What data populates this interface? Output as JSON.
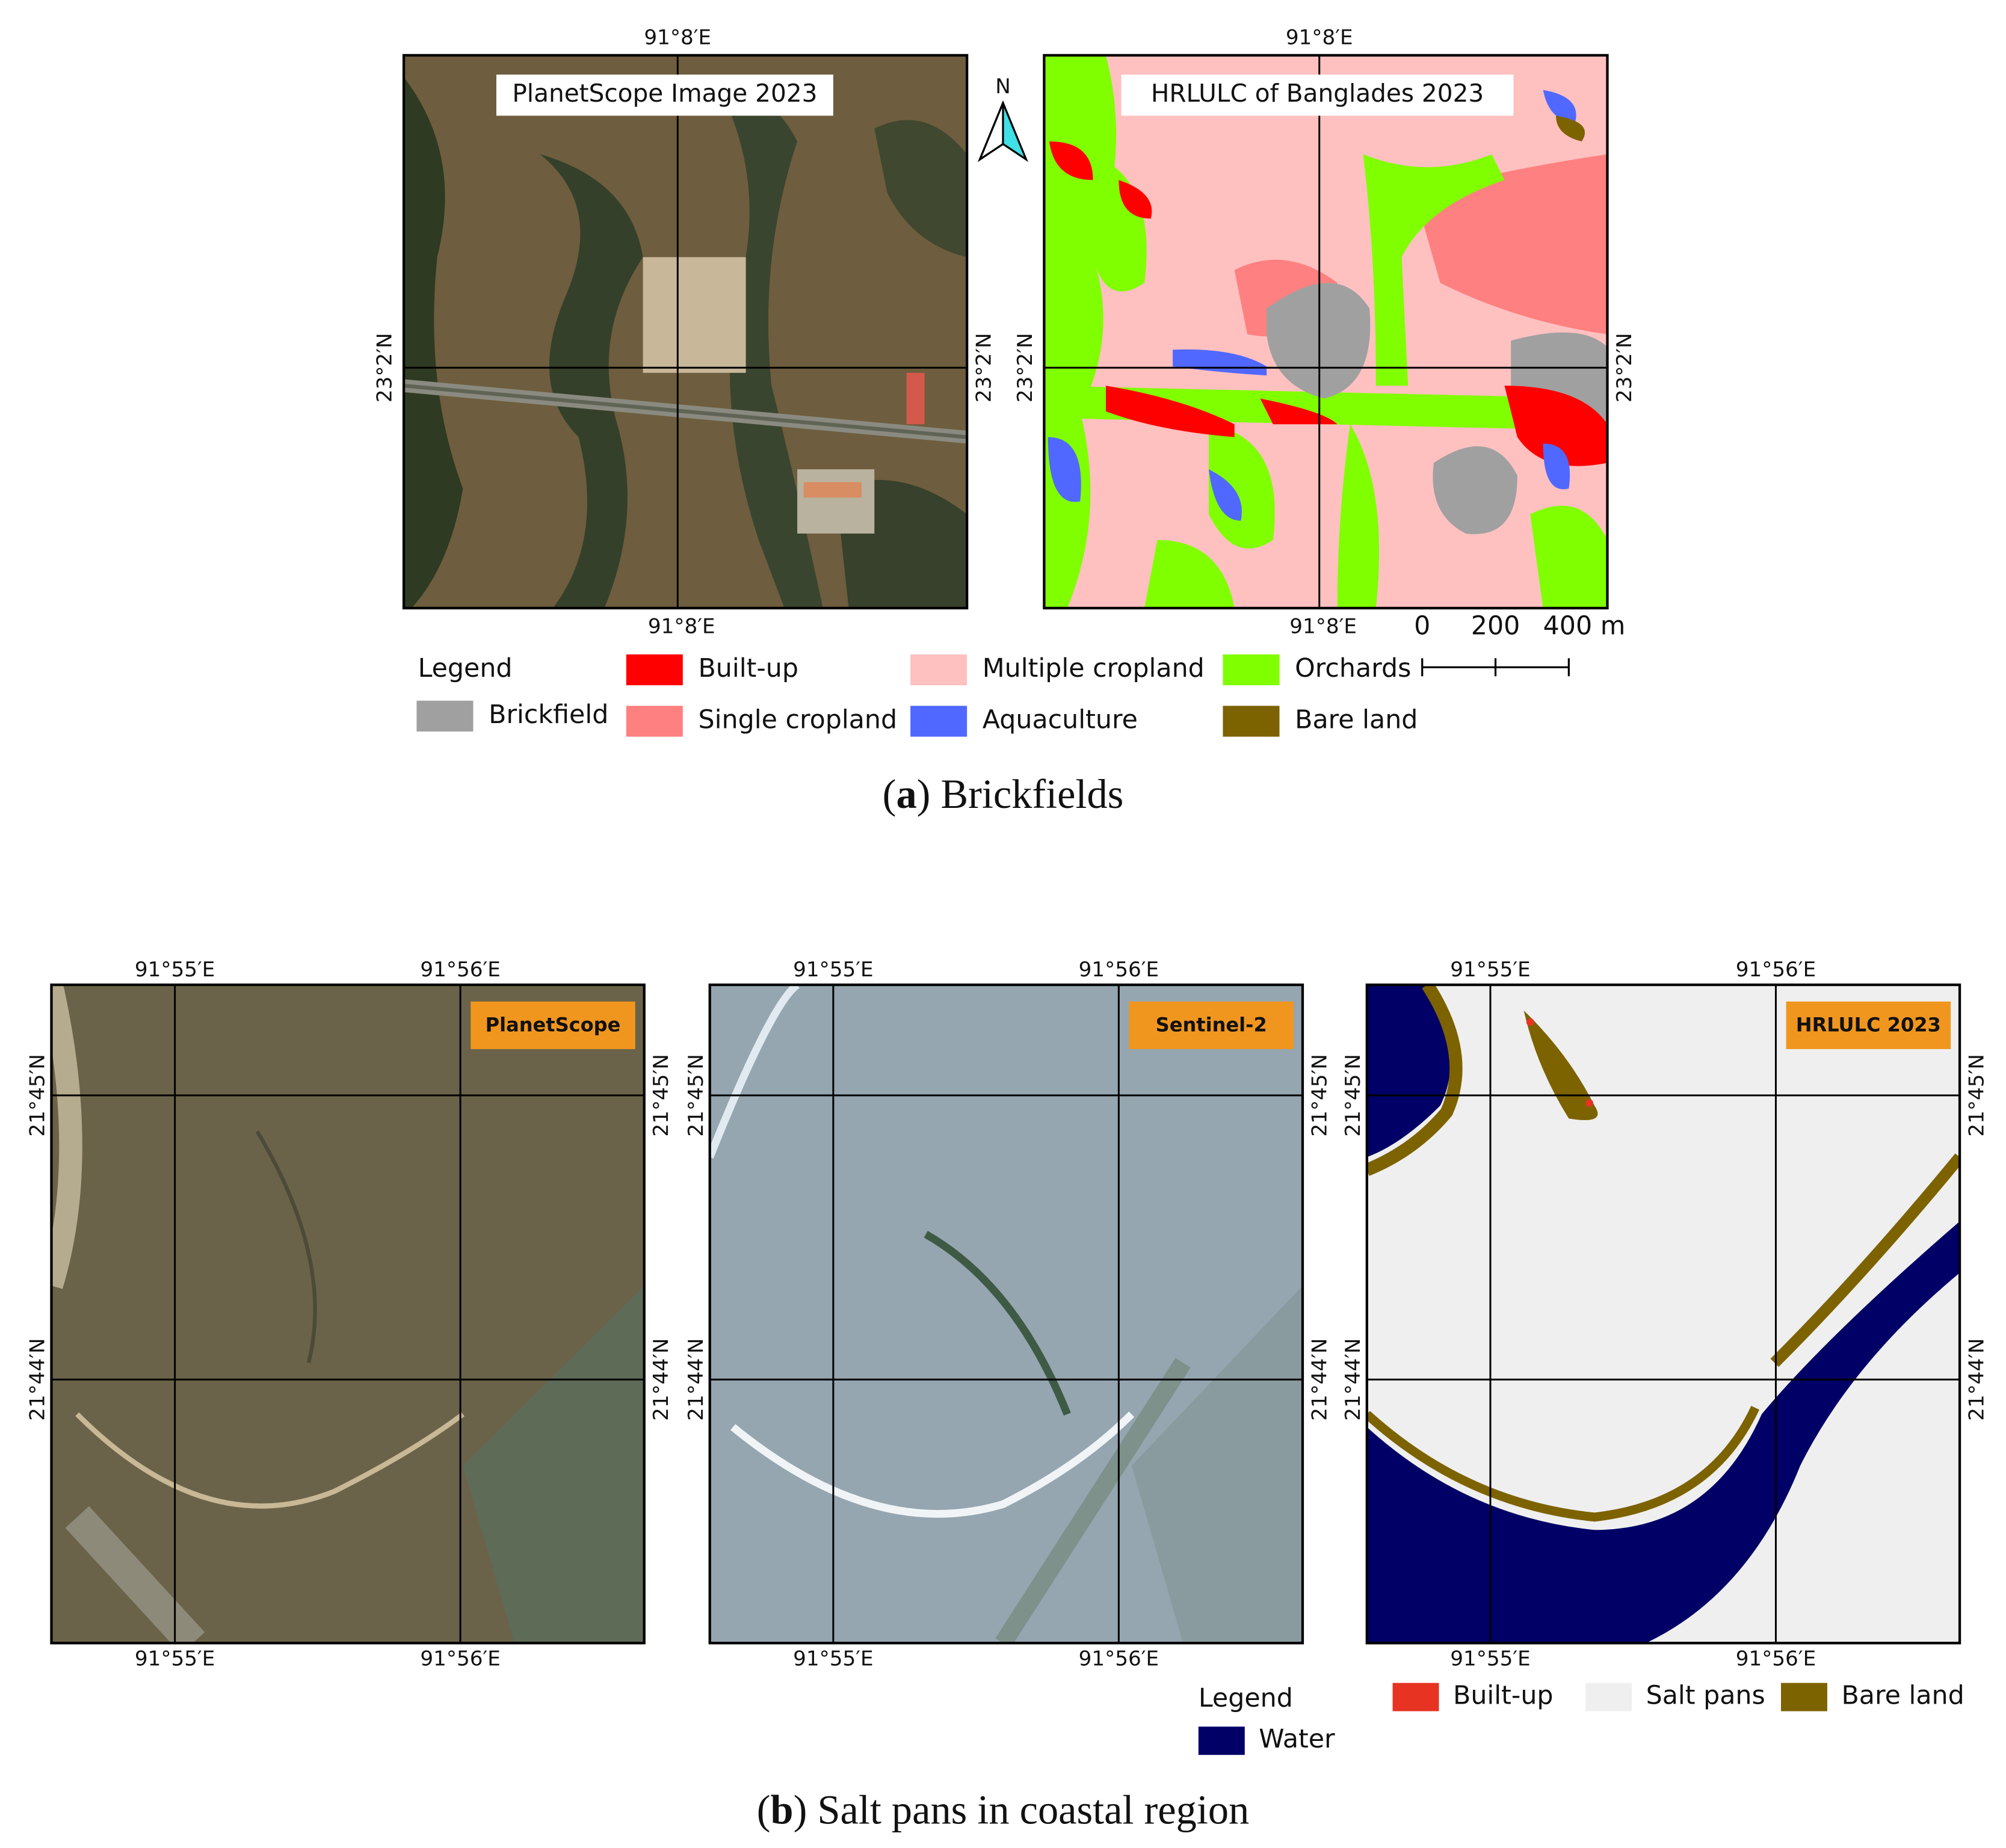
{
  "panel_a": {
    "maps": [
      {
        "title": "PlanetScope Image 2023",
        "top_lon": "91°8′E",
        "bottom_lon": "91°8′E",
        "left_lat": "23°2′N",
        "right_lat": "23°2′N"
      },
      {
        "title": "HRLULC of Banglades 2023",
        "top_lon": "91°8′E",
        "bottom_lon": "91°8′E",
        "left_lat": "23°2′N",
        "right_lat": "23°2′N"
      }
    ],
    "north": "N",
    "scale": [
      "0",
      "200",
      "400 m"
    ],
    "legend": {
      "title": "Legend",
      "items": [
        {
          "label": "Brickfield",
          "color": "#a0a0a0"
        },
        {
          "label": "Built-up",
          "color": "#ff0000"
        },
        {
          "label": "Single cropland",
          "color": "#ff8080"
        },
        {
          "label": "Multiple cropland",
          "color": "#ffc0c0"
        },
        {
          "label": "Aquaculture",
          "color": "#5068ff"
        },
        {
          "label": "Orchards",
          "color": "#80ff00"
        },
        {
          "label": "Bare land",
          "color": "#7d6200"
        }
      ]
    },
    "caption": {
      "open": "(",
      "label": "a",
      "rest": ") Brickfields"
    }
  },
  "panel_b": {
    "maps": [
      {
        "badge": "PlanetScope",
        "top_lon": [
          "91°55′E",
          "91°56′E"
        ],
        "bottom_lon": [
          "91°55′E",
          "91°56′E"
        ],
        "left_lat": [
          "21°45′N",
          "21°44′N"
        ],
        "right_lat": [
          "21°45′N",
          "21°44′N"
        ]
      },
      {
        "badge": "Sentinel-2",
        "top_lon": [
          "91°55′E",
          "91°56′E"
        ],
        "bottom_lon": [
          "91°55′E",
          "91°56′E"
        ],
        "left_lat": [
          "21°45′N",
          "21°44′N"
        ],
        "right_lat": [
          "21°45′N",
          "21°44′N"
        ]
      },
      {
        "badge": "HRLULC 2023",
        "top_lon": [
          "91°55′E",
          "91°56′E"
        ],
        "bottom_lon": [
          "91°55′E",
          "91°56′E"
        ],
        "left_lat": [
          "21°45′N",
          "21°44′N"
        ],
        "right_lat": [
          "21°45′N",
          "21°44′N"
        ]
      }
    ],
    "badge_color": "#f0961e",
    "legend": {
      "title": "Legend",
      "items": [
        {
          "label": "Water",
          "color": "#000066"
        },
        {
          "label": "Built-up",
          "color": "#e63322"
        },
        {
          "label": "Salt pans",
          "color": "#efefef"
        },
        {
          "label": "Bare land",
          "color": "#7d6200"
        }
      ]
    },
    "caption": {
      "open": "(",
      "label": "b",
      "rest": ") Salt pans in coastal region"
    }
  }
}
